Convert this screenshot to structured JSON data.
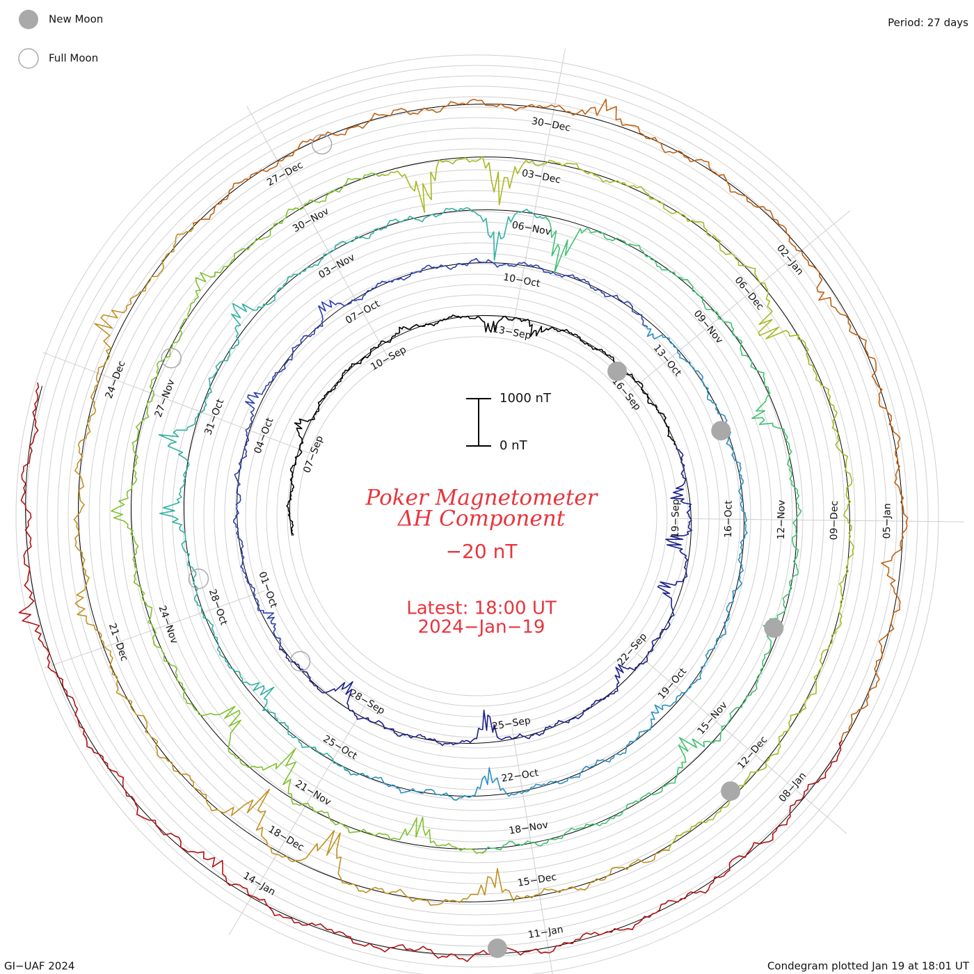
{
  "header": {
    "period_text": "Period: 27 days",
    "legend": [
      {
        "label": "New Moon",
        "style": "filled"
      },
      {
        "label": "Full Moon",
        "style": "open"
      }
    ]
  },
  "center": {
    "title_line1": "Poker Magnetometer",
    "title_line2": "ΔH Component",
    "baseline_value": "−20 nT",
    "latest_line1": "Latest: 18:00 UT",
    "latest_line2": "2024−Jan−19",
    "scale_top_label": "1000 nT",
    "scale_bottom_label": "0 nT"
  },
  "footer": {
    "left": "GI−UAF 2024",
    "right": "Condegram plotted Jan 19 at 18:01 UT"
  },
  "colors": {
    "title": "#e8343c",
    "grid": "#c8c8c8",
    "moon_fill": "#a9a9a9",
    "moon_stroke": "#a9a9a9"
  },
  "chart_data": {
    "type": "line",
    "title": "Poker Magnetometer ΔH Component",
    "subtitle": "−20 nT",
    "period_days": 27,
    "scale_nT": [
      0,
      1000
    ],
    "start_date": "2023-09-05",
    "end_date": "2024-01-19",
    "date_labels": [
      "07−Sep",
      "10−Sep",
      "13−Sep",
      "16−Sep",
      "19−Sep",
      "22−Sep",
      "25−Sep",
      "28−Sep",
      "01−Oct",
      "04−Oct",
      "07−Oct",
      "10−Oct",
      "13−Oct",
      "16−Oct",
      "19−Oct",
      "22−Oct",
      "25−Oct",
      "28−Oct",
      "31−Oct",
      "03−Nov",
      "06−Nov",
      "09−Nov",
      "12−Nov",
      "15−Nov",
      "18−Nov",
      "21−Nov",
      "24−Nov",
      "27−Nov",
      "30−Nov",
      "03−Dec",
      "06−Dec",
      "09−Dec",
      "12−Dec",
      "15−Dec",
      "18−Dec",
      "21−Dec",
      "24−Dec",
      "27−Dec",
      "30−Dec",
      "02−Jan",
      "05−Jan",
      "08−Jan",
      "11−Jan",
      "14−Jan"
    ],
    "new_moons": [
      "2023-09-15",
      "2023-10-14",
      "2023-11-13",
      "2023-12-12",
      "2024-01-11"
    ],
    "full_moons": [
      "2023-09-29",
      "2023-10-28",
      "2023-11-27",
      "2023-12-27"
    ],
    "series_colors": [
      "#000000",
      "#1a1f8a",
      "#2a3fb0",
      "#2a8fc0",
      "#30b0a0",
      "#40c070",
      "#80c030",
      "#a8b820",
      "#c09020",
      "#c06010",
      "#b01010"
    ],
    "disturbances": [
      {
        "date": "2023-09-07",
        "nT": -250
      },
      {
        "date": "2023-09-10",
        "nT": -150
      },
      {
        "date": "2023-09-12",
        "nT": 400
      },
      {
        "date": "2023-09-13",
        "nT": 300
      },
      {
        "date": "2023-09-18",
        "nT": 350
      },
      {
        "date": "2023-09-19",
        "nT": 500
      },
      {
        "date": "2023-09-20",
        "nT": 450
      },
      {
        "date": "2023-09-22",
        "nT": 250
      },
      {
        "date": "2023-09-25",
        "nT": 600
      },
      {
        "date": "2023-09-28",
        "nT": 400
      },
      {
        "date": "2023-09-30",
        "nT": 200
      },
      {
        "date": "2023-10-04",
        "nT": -300
      },
      {
        "date": "2023-10-06",
        "nT": -250
      },
      {
        "date": "2023-10-12",
        "nT": 200
      },
      {
        "date": "2023-10-19",
        "nT": 250
      },
      {
        "date": "2023-10-22",
        "nT": 350
      },
      {
        "date": "2023-10-26",
        "nT": 300
      },
      {
        "date": "2023-10-29",
        "nT": -350
      },
      {
        "date": "2023-10-30",
        "nT": -450
      },
      {
        "date": "2023-11-01",
        "nT": -300
      },
      {
        "date": "2023-11-05",
        "nT": 600
      },
      {
        "date": "2023-11-06",
        "nT": 700
      },
      {
        "date": "2023-11-10",
        "nT": 300
      },
      {
        "date": "2023-11-13",
        "nT": 250
      },
      {
        "date": "2023-11-15",
        "nT": 300
      },
      {
        "date": "2023-11-19",
        "nT": 400
      },
      {
        "date": "2023-11-21",
        "nT": 500
      },
      {
        "date": "2023-11-22",
        "nT": 450
      },
      {
        "date": "2023-11-25",
        "nT": -200
      },
      {
        "date": "2023-11-28",
        "nT": -250
      },
      {
        "date": "2023-12-01",
        "nT": 600
      },
      {
        "date": "2023-12-02",
        "nT": 550
      },
      {
        "date": "2023-12-06",
        "nT": 400
      },
      {
        "date": "2023-12-15",
        "nT": 350
      },
      {
        "date": "2023-12-17",
        "nT": 500
      },
      {
        "date": "2023-12-18",
        "nT": 450
      },
      {
        "date": "2023-12-21",
        "nT": -150
      },
      {
        "date": "2023-12-24",
        "nT": -300
      },
      {
        "date": "2023-12-30",
        "nT": -250
      },
      {
        "date": "2024-01-02",
        "nT": 200
      },
      {
        "date": "2024-01-05",
        "nT": 150
      },
      {
        "date": "2024-01-14",
        "nT": 200
      },
      {
        "date": "2024-01-17",
        "nT": -200
      }
    ]
  }
}
